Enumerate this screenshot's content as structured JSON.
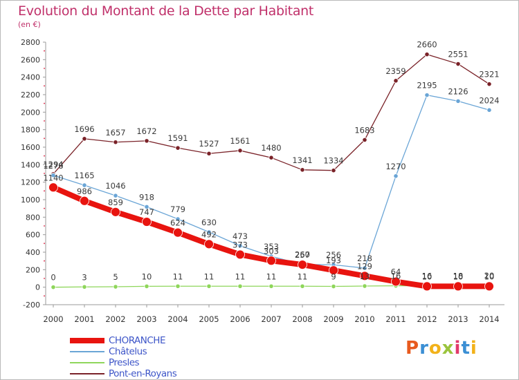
{
  "header": {
    "title": "Evolution du Montant de la Dette par Habitant",
    "subtitle": "(en €)"
  },
  "logo": {
    "text": "Proxiti",
    "colors": [
      "#e85a1e",
      "#3b8fd4",
      "#f2b21a",
      "#9ac43c",
      "#e23a6b",
      "#3b8fd4",
      "#f2b21a"
    ]
  },
  "chart_data": {
    "type": "line",
    "title": "Evolution du Montant de la Dette par Habitant",
    "ylabel": "(en €)",
    "xlabel": "",
    "ylim": [
      -200,
      2800
    ],
    "y_ticks": [
      -200,
      0,
      200,
      400,
      600,
      800,
      1000,
      1200,
      1400,
      1600,
      1800,
      2000,
      2200,
      2400,
      2600,
      2800
    ],
    "grid": false,
    "legend_position": "bottom-left",
    "categories": [
      "2000",
      "2001",
      "2002",
      "2003",
      "2004",
      "2005",
      "2006",
      "2007",
      "2008",
      "2009",
      "2010",
      "2011",
      "2012",
      "2013",
      "2014"
    ],
    "series": [
      {
        "name": "CHORANCHE",
        "color": "#e8140f",
        "values": [
          1140,
          986,
          859,
          747,
          624,
          492,
          373,
          303,
          257,
          193,
          129,
          64,
          10,
          10,
          10
        ]
      },
      {
        "name": "Châtelus",
        "color": "#6aa5d6",
        "values": [
          1278,
          1165,
          1046,
          918,
          779,
          630,
          473,
          353,
          260,
          256,
          218,
          1270,
          2195,
          2126,
          2024
        ]
      },
      {
        "name": "Presles",
        "color": "#8ed65a",
        "values": [
          0,
          3,
          5,
          10,
          11,
          11,
          11,
          11,
          11,
          9,
          13,
          16,
          16,
          18,
          20
        ]
      },
      {
        "name": "Pont-en-Royans",
        "color": "#7a2228",
        "values": [
          1294,
          1696,
          1657,
          1672,
          1591,
          1527,
          1561,
          1480,
          1341,
          1334,
          1683,
          2359,
          2660,
          2551,
          2321
        ]
      }
    ]
  }
}
